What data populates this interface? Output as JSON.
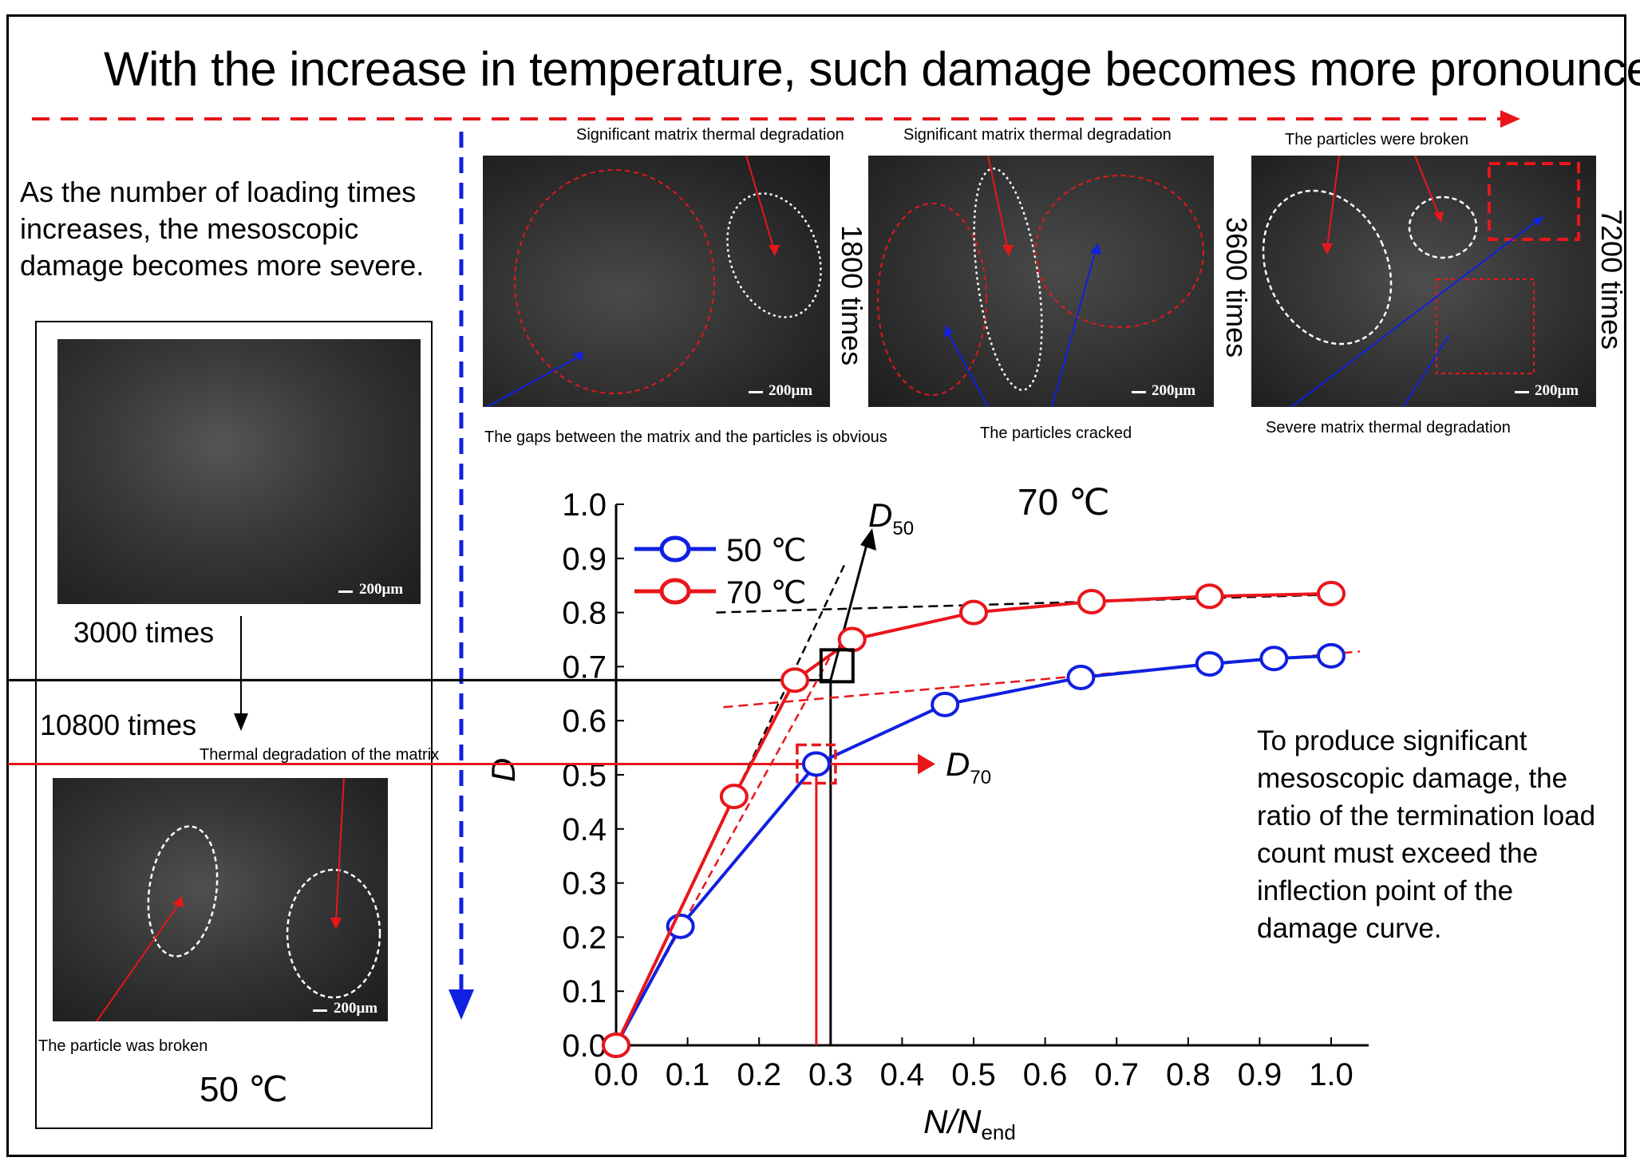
{
  "headline": "With the increase in temperature, such damage becomes more pronounced.",
  "side_note": "As the number of loading times increases, the mesoscopic damage becomes more severe.",
  "conclusion": "To produce significant mesoscopic damage, the ratio of the termination load count must exceed the inflection point of the damage curve.",
  "colors": {
    "red": "#e8161b",
    "blue": "#1020e0",
    "black": "#000000"
  },
  "sem_images": {
    "scale_label": "200μm",
    "top": [
      {
        "times": "1800 times",
        "labels": [
          "Significant matrix thermal degradation",
          "The gaps between the matrix and the particles is obvious"
        ]
      },
      {
        "times": "3600 times",
        "labels": [
          "Significant matrix thermal degradation",
          "The particles cracked"
        ]
      },
      {
        "times": "7200 times",
        "labels": [
          "The particles were broken",
          "Severe matrix thermal degradation"
        ]
      }
    ],
    "left": {
      "first_times": "3000 times",
      "second_times": "10800 times",
      "labels": [
        "Thermal degradation of the matrix",
        "The particle was broken"
      ],
      "temperature": "50 ℃"
    }
  },
  "chart_data": {
    "type": "line",
    "title": "70 ℃",
    "xlabel": "N/Nend",
    "ylabel": "D",
    "xlim": [
      0,
      1.0
    ],
    "ylim": [
      0,
      1.0
    ],
    "xticks": [
      "0.0",
      "0.1",
      "0.2",
      "0.3",
      "0.4",
      "0.5",
      "0.6",
      "0.7",
      "0.8",
      "0.9",
      "1.0"
    ],
    "yticks": [
      "0.0",
      "0.1",
      "0.2",
      "0.3",
      "0.4",
      "0.5",
      "0.6",
      "0.7",
      "0.8",
      "0.9",
      "1.0"
    ],
    "legend_position": "top-left",
    "series": [
      {
        "name": "50 ℃",
        "color": "#1020e0",
        "x": [
          0,
          0.09,
          0.28,
          0.46,
          0.65,
          0.83,
          0.92,
          1.0
        ],
        "y": [
          0,
          0.22,
          0.52,
          0.63,
          0.68,
          0.705,
          0.715,
          0.72
        ]
      },
      {
        "name": "70 ℃",
        "color": "#e8161b",
        "x": [
          0,
          0.165,
          0.25,
          0.33,
          0.5,
          0.665,
          0.83,
          1.0
        ],
        "y": [
          0,
          0.46,
          0.675,
          0.75,
          0.8,
          0.82,
          0.83,
          0.835
        ]
      }
    ],
    "annotations": {
      "d50_label": "D",
      "d50_sub": "50",
      "d70_label": "D",
      "d70_sub": "70",
      "d50_point": [
        0.3,
        0.675
      ],
      "d70_point": [
        0.28,
        0.52
      ]
    }
  }
}
